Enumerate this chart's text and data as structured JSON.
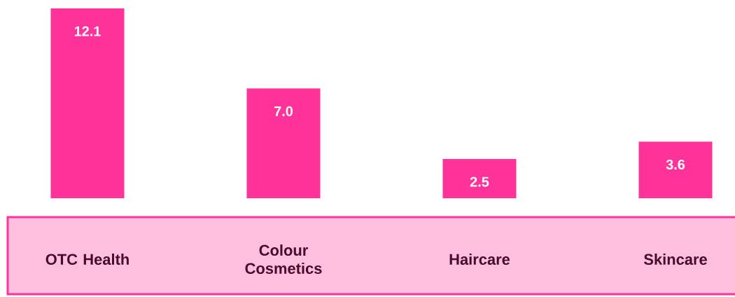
{
  "chart_data": {
    "type": "bar",
    "categories": [
      "OTC Health",
      "Colour Cosmetics",
      "Haircare",
      "Skincare"
    ],
    "values": [
      12.1,
      7.0,
      2.5,
      3.6
    ],
    "value_labels": [
      "12.1",
      "7.0",
      "2.5",
      "3.6"
    ],
    "color": "#ff3399"
  }
}
